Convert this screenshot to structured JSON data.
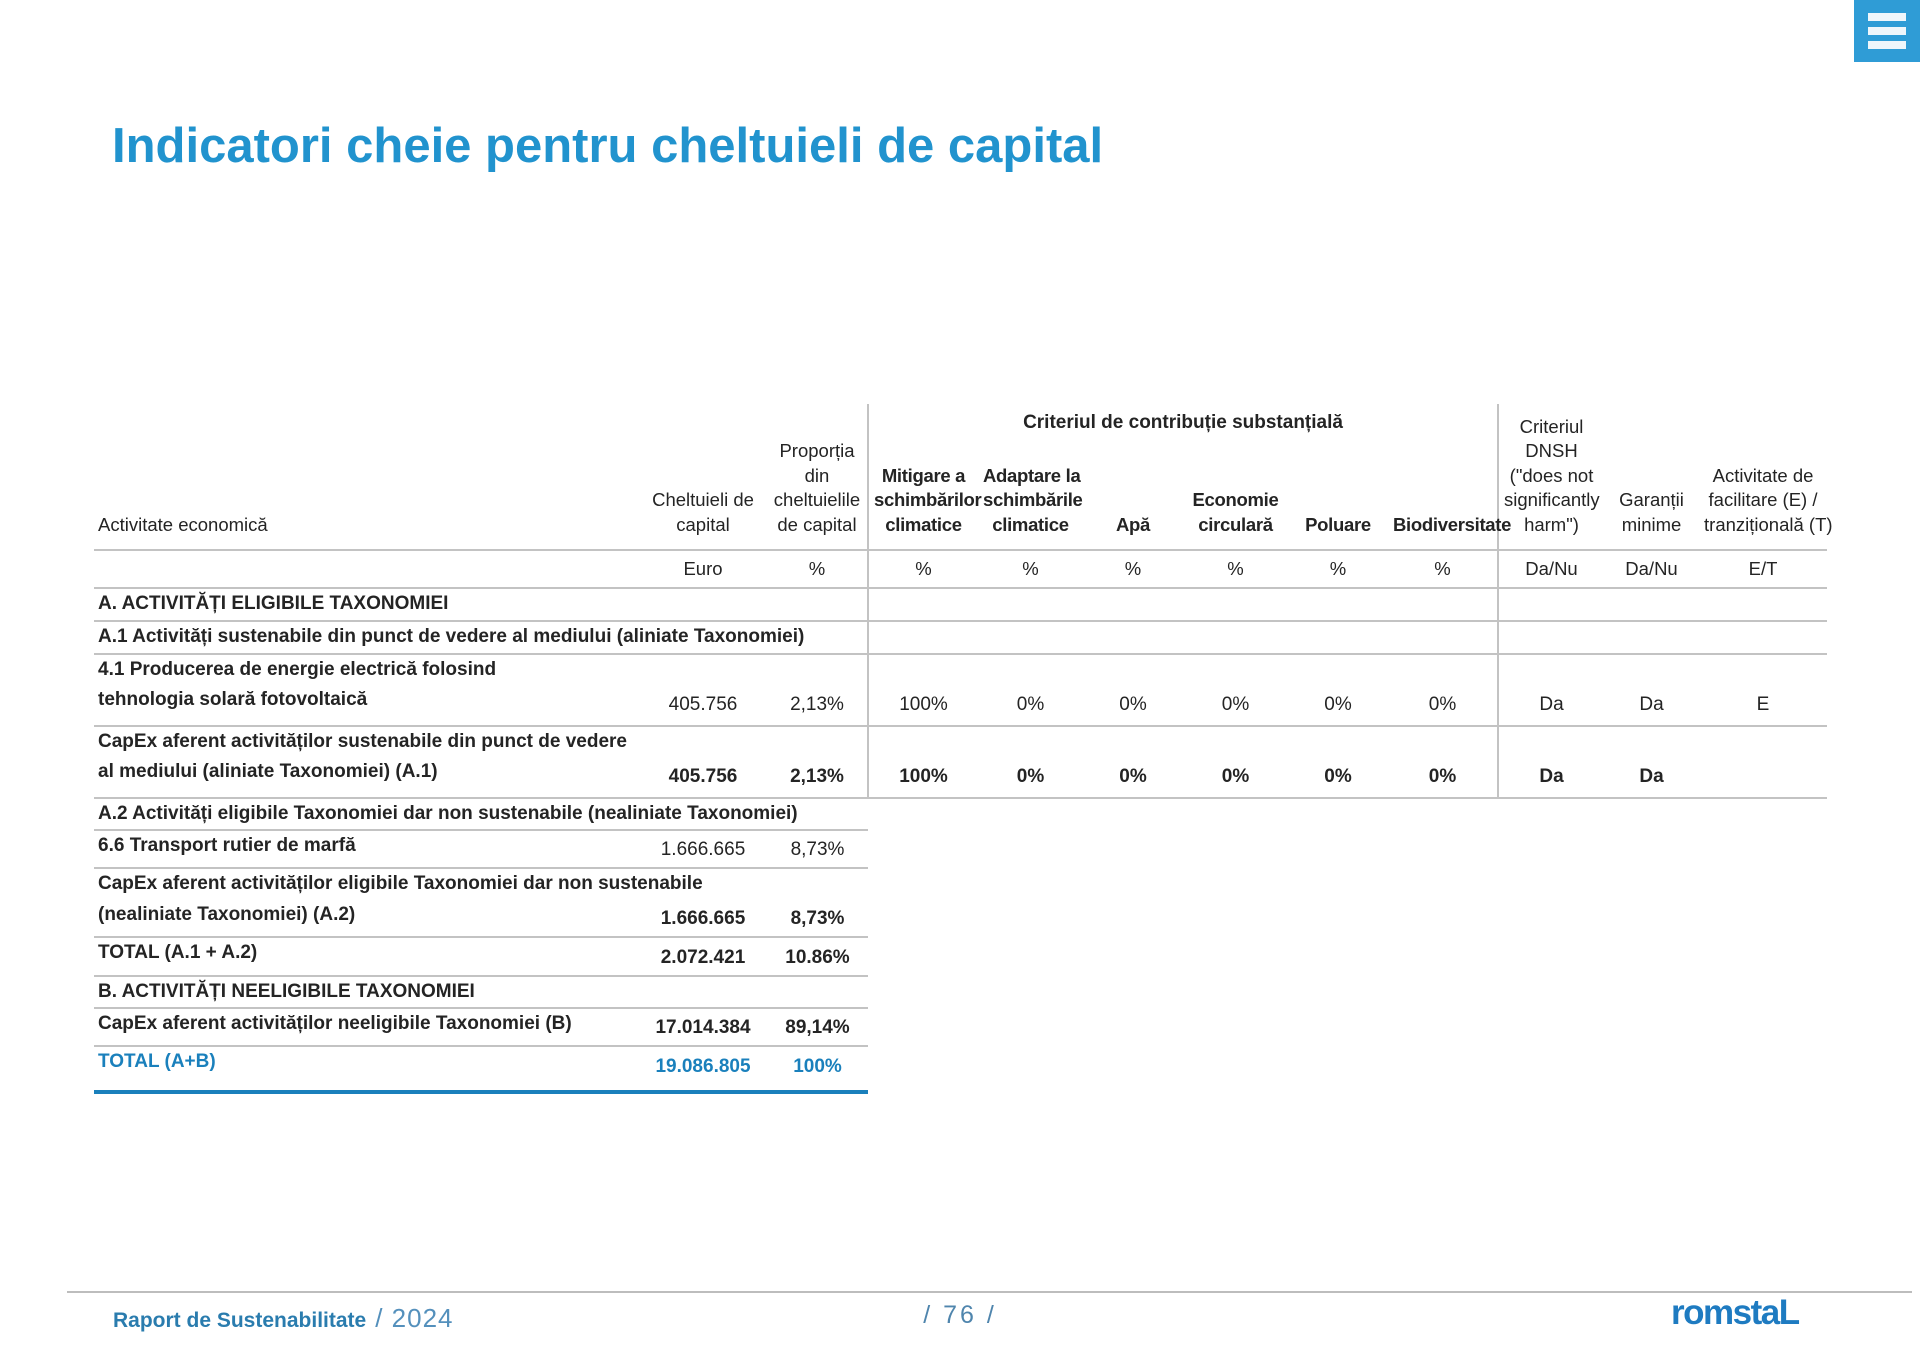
{
  "page": {
    "title": "Indicatori cheie pentru cheltuieli de capital"
  },
  "menu": {
    "icon": "hamburger-icon"
  },
  "colors": {
    "title_blue": "#2193CE",
    "accent_blue": "#1A80BC",
    "menu_blue": "#2F9CD6",
    "footer_blue": "#2A7CAE",
    "footer_light_blue": "#5490BC",
    "logo_blue": "#1E7BC1",
    "border_gray": "#C3C3C3"
  },
  "table": {
    "group_header": "Criteriul de contribuție substanțială",
    "columns": [
      {
        "label": "Activitate economică",
        "unit": ""
      },
      {
        "label": "Cheltuieli de\ncapital",
        "unit": "Euro"
      },
      {
        "label": "Proporția\ndin\ncheltuielile\nde capital",
        "unit": "%"
      },
      {
        "label": "Mitigare a\nschimbărilor\nclimatice",
        "unit": "%"
      },
      {
        "label": "Adaptare la\nschimbările\nclimatice",
        "unit": "%"
      },
      {
        "label": "Apă",
        "unit": "%"
      },
      {
        "label": "Economie\ncirculară",
        "unit": "%"
      },
      {
        "label": "Poluare",
        "unit": "%"
      },
      {
        "label": "Biodiversitate",
        "unit": "%"
      },
      {
        "label": "Criteriul\nDNSH\n(\"does not\nsignificantly\nharm\")",
        "unit": "Da/Nu"
      },
      {
        "label": "Garanții\nminime",
        "unit": "Da/Nu"
      },
      {
        "label": "Activitate de\nfacilitare (E) /\ntranzițională (T)",
        "unit": "E/T"
      }
    ],
    "rows": [
      {
        "type": "section",
        "label": "A. ACTIVITĂȚI ELIGIBILE TAXONOMIEI"
      },
      {
        "type": "section",
        "label": "A.1 Activități sustenabile din punct de vedere al mediului (aliniate Taxonomiei)"
      },
      {
        "type": "data",
        "label": "4.1 Producerea de energie electrică folosind\ntehnologia solară fotovoltaică",
        "values": [
          "405.756",
          "2,13%",
          "100%",
          "0%",
          "0%",
          "0%",
          "0%",
          "0%",
          "Da",
          "Da",
          "E"
        ],
        "bold_values": false
      },
      {
        "type": "data",
        "label": "CapEx aferent activităților sustenabile din punct de vedere\nal mediului (aliniate Taxonomiei) (A.1)",
        "values": [
          "405.756",
          "2,13%",
          "100%",
          "0%",
          "0%",
          "0%",
          "0%",
          "0%",
          "Da",
          "Da",
          ""
        ],
        "bold_values": true
      },
      {
        "type": "section-short",
        "label": "A.2 Activități eligibile Taxonomiei dar non sustenabile (nealiniate Taxonomiei)"
      },
      {
        "type": "left",
        "label": "6.6 Transport rutier de marfă",
        "values": [
          "1.666.665",
          "8,73%"
        ],
        "bold_values": false
      },
      {
        "type": "left",
        "label": "CapEx aferent activităților eligibile Taxonomiei dar non sustenabile\n(nealiniate Taxonomiei) (A.2)",
        "values": [
          "1.666.665",
          "8,73%"
        ],
        "bold_values": true
      },
      {
        "type": "left",
        "label": "TOTAL (A.1 + A.2)",
        "values": [
          "2.072.421",
          "10.86%"
        ],
        "bold_values": true
      },
      {
        "type": "section-short",
        "label": "B. ACTIVITĂȚI NEELIGIBILE TAXONOMIEI"
      },
      {
        "type": "left",
        "label": "CapEx aferent activităților neeligibile Taxonomiei (B)",
        "values": [
          "17.014.384",
          "89,14%"
        ],
        "bold_values": true
      },
      {
        "type": "left",
        "label": "TOTAL (A+B)",
        "values": [
          "19.086.805",
          "100%"
        ],
        "bold_values": true,
        "accent": true
      }
    ]
  },
  "footer": {
    "report_label": "Raport de Sustenabilitate",
    "year": "/ 2024",
    "page_number": "/ 76 /",
    "logo": "romstaL"
  }
}
